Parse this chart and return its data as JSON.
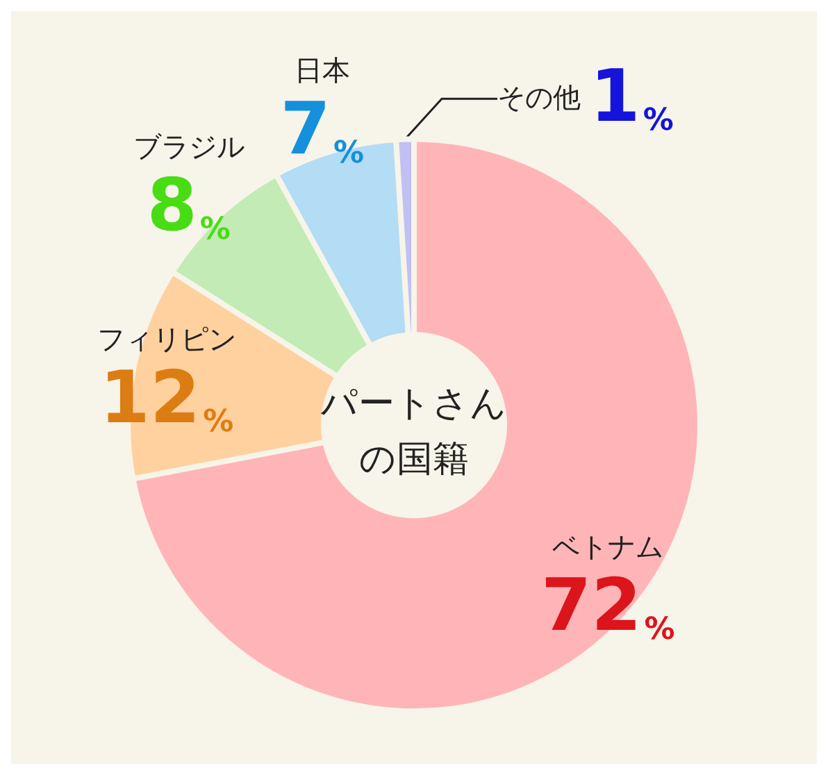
{
  "chart_data": {
    "type": "donut",
    "title": "パートさんの国籍",
    "categories": [
      "ベトナム",
      "フィリピン",
      "ブラジル",
      "日本",
      "その他"
    ],
    "values": [
      72,
      12,
      8,
      7,
      1
    ],
    "value_labels": [
      "72%",
      "12%",
      "8%",
      "7%",
      "1%"
    ],
    "colors": [
      "#ffb5b8",
      "#ffd19e",
      "#c3ebb5",
      "#b3dcf5",
      "#c0c0f5"
    ],
    "legend": false
  }
}
